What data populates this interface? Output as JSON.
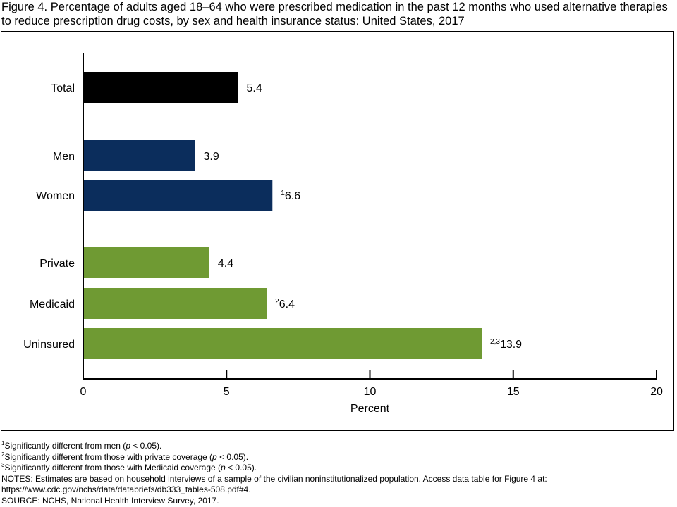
{
  "figure": {
    "title": "Figure 4. Percentage of adults aged 18–64 who were prescribed medication in the past 12 months who used alternative therapies to reduce prescription drug costs, by sex and health insurance status: United States, 2017"
  },
  "chart_data": {
    "type": "bar",
    "orientation": "horizontal",
    "title": "",
    "xlabel": "Percent",
    "ylabel": "",
    "xlim": [
      0,
      20
    ],
    "x_ticks": [
      0,
      5,
      10,
      15,
      20
    ],
    "grid": false,
    "categories": [
      "Total",
      "Men",
      "Women",
      "Private",
      "Medicaid",
      "Uninsured"
    ],
    "values": [
      5.4,
      3.9,
      6.6,
      4.4,
      6.4,
      13.9
    ],
    "value_labels": [
      "5.4",
      "3.9",
      "6.6",
      "4.4",
      "6.4",
      "13.9"
    ],
    "superscripts": [
      "",
      "",
      "1",
      "",
      "2",
      "2,3"
    ],
    "groups": [
      "total",
      "sex",
      "sex",
      "insurance",
      "insurance",
      "insurance"
    ],
    "colors": {
      "total": "#000000",
      "sex": "#0b2d5c",
      "insurance": "#6f9a33"
    }
  },
  "notes": {
    "fn1": {
      "sup": "1",
      "text_before": "Significantly different from men (",
      "p": "p",
      "text_after": " < 0.05)."
    },
    "fn2": {
      "sup": "2",
      "text_before": "Significantly different from those with private coverage (",
      "p": "p",
      "text_after": " < 0.05)."
    },
    "fn3": {
      "sup": "3",
      "text_before": "Significantly different from those with Medicaid coverage (",
      "p": "p",
      "text_after": " < 0.05)."
    },
    "notes_line1": "NOTES: Estimates are based on household interviews of a sample of the civilian noninstitutionalized population. Access data table for Figure 4 at:",
    "notes_line2": "https://www.cdc.gov/nchs/data/databriefs/db333_tables-508.pdf#4.",
    "source": "SOURCE: NCHS, National Health Interview Survey, 2017."
  }
}
